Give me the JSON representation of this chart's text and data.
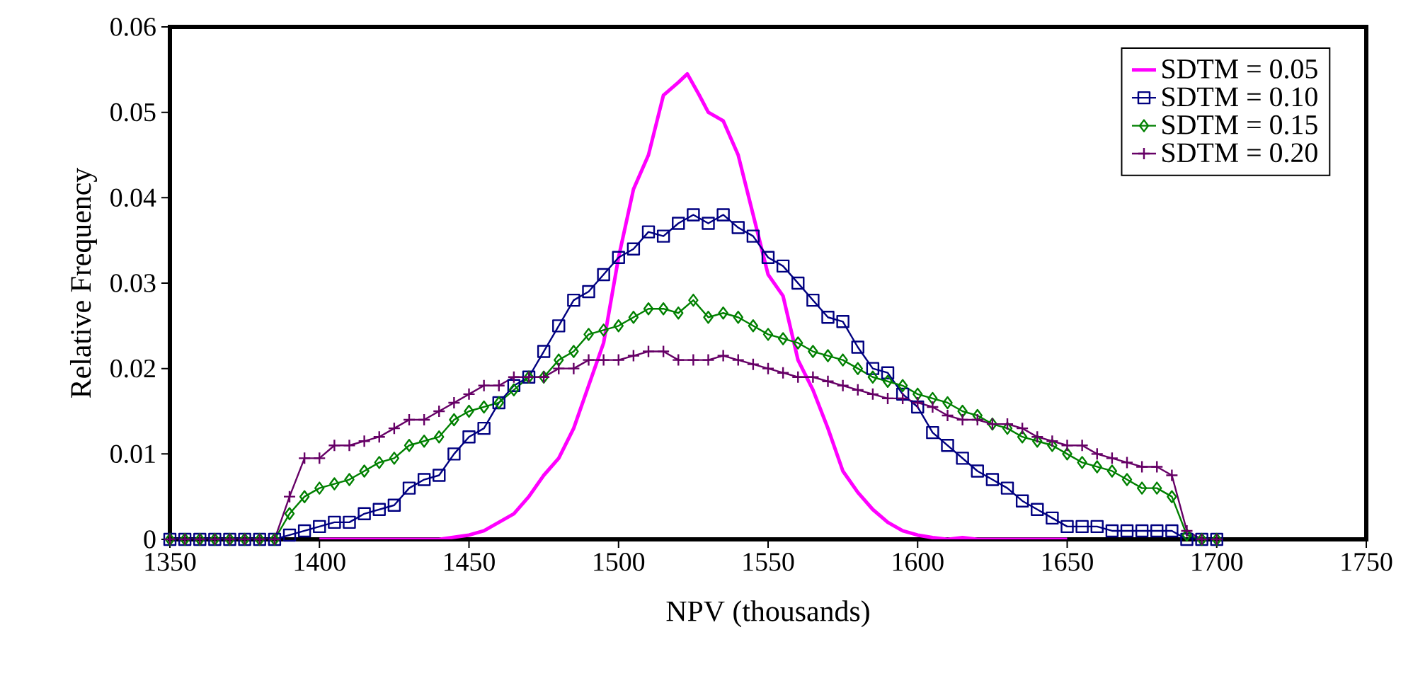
{
  "chart_data": {
    "type": "line",
    "xlabel": "NPV (thousands)",
    "ylabel": "Relative Frequency",
    "xlim": [
      1350,
      1750
    ],
    "xticks": [
      1350,
      1400,
      1450,
      1500,
      1550,
      1600,
      1650,
      1700,
      1750
    ],
    "ylim": [
      0,
      0.06
    ],
    "yticks": [
      0,
      0.01,
      0.02,
      0.03,
      0.04,
      0.05,
      0.06
    ],
    "legend": "top right",
    "grid": false,
    "line_style": "solid",
    "series": [
      {
        "name": "SDTM = 0.05",
        "color": "#ff00ff",
        "marker": "none",
        "x": [
          1400,
          1440,
          1450,
          1455,
          1460,
          1465,
          1470,
          1475,
          1480,
          1485,
          1490,
          1495,
          1500,
          1505,
          1510,
          1515,
          1520,
          1523,
          1527,
          1530,
          1535,
          1540,
          1545,
          1550,
          1555,
          1560,
          1565,
          1570,
          1575,
          1580,
          1585,
          1590,
          1595,
          1600,
          1605,
          1610,
          1615,
          1620,
          1650
        ],
        "values": [
          0,
          0,
          0.0005,
          0.001,
          0.002,
          0.003,
          0.005,
          0.0075,
          0.0095,
          0.013,
          0.018,
          0.023,
          0.033,
          0.041,
          0.045,
          0.052,
          0.0535,
          0.0545,
          0.052,
          0.05,
          0.049,
          0.045,
          0.038,
          0.031,
          0.0285,
          0.021,
          0.0175,
          0.013,
          0.008,
          0.0055,
          0.0035,
          0.002,
          0.001,
          0.0005,
          0.0002,
          0,
          0.0002,
          0,
          0
        ]
      },
      {
        "name": "SDTM = 0.10",
        "color": "#000080",
        "marker": "square",
        "x": [
          1350,
          1355,
          1360,
          1365,
          1370,
          1375,
          1380,
          1385,
          1390,
          1395,
          1400,
          1405,
          1410,
          1415,
          1420,
          1425,
          1430,
          1435,
          1440,
          1445,
          1450,
          1455,
          1460,
          1465,
          1470,
          1475,
          1480,
          1485,
          1490,
          1495,
          1500,
          1505,
          1510,
          1515,
          1520,
          1525,
          1530,
          1535,
          1540,
          1545,
          1550,
          1555,
          1560,
          1565,
          1570,
          1575,
          1580,
          1585,
          1590,
          1595,
          1600,
          1605,
          1610,
          1615,
          1620,
          1625,
          1630,
          1635,
          1640,
          1645,
          1650,
          1655,
          1660,
          1665,
          1670,
          1675,
          1680,
          1685,
          1690,
          1695,
          1700
        ],
        "values": [
          0,
          0,
          0,
          0,
          0,
          0,
          0,
          0,
          0.0005,
          0.001,
          0.0015,
          0.002,
          0.002,
          0.003,
          0.0035,
          0.004,
          0.006,
          0.007,
          0.0075,
          0.01,
          0.012,
          0.013,
          0.016,
          0.018,
          0.019,
          0.022,
          0.025,
          0.028,
          0.029,
          0.031,
          0.033,
          0.034,
          0.036,
          0.0355,
          0.037,
          0.038,
          0.037,
          0.038,
          0.0365,
          0.0355,
          0.033,
          0.032,
          0.03,
          0.028,
          0.026,
          0.0255,
          0.0225,
          0.02,
          0.0195,
          0.017,
          0.0155,
          0.0125,
          0.011,
          0.0095,
          0.008,
          0.007,
          0.006,
          0.0045,
          0.0035,
          0.0025,
          0.0015,
          0.0015,
          0.0015,
          0.001,
          0.001,
          0.001,
          0.001,
          0.001,
          0,
          0,
          0
        ]
      },
      {
        "name": "SDTM = 0.15",
        "color": "#008000",
        "marker": "diamond",
        "x": [
          1350,
          1355,
          1360,
          1365,
          1370,
          1375,
          1380,
          1385,
          1390,
          1395,
          1400,
          1405,
          1410,
          1415,
          1420,
          1425,
          1430,
          1435,
          1440,
          1445,
          1450,
          1455,
          1460,
          1465,
          1470,
          1475,
          1480,
          1485,
          1490,
          1495,
          1500,
          1505,
          1510,
          1515,
          1520,
          1525,
          1530,
          1535,
          1540,
          1545,
          1550,
          1555,
          1560,
          1565,
          1570,
          1575,
          1580,
          1585,
          1590,
          1595,
          1600,
          1605,
          1610,
          1615,
          1620,
          1625,
          1630,
          1635,
          1640,
          1645,
          1650,
          1655,
          1660,
          1665,
          1670,
          1675,
          1680,
          1685,
          1690,
          1695,
          1700
        ],
        "values": [
          0,
          0,
          0,
          0,
          0,
          0,
          0,
          0,
          0.003,
          0.005,
          0.006,
          0.0065,
          0.007,
          0.008,
          0.009,
          0.0095,
          0.011,
          0.0115,
          0.012,
          0.014,
          0.015,
          0.0155,
          0.016,
          0.0175,
          0.019,
          0.019,
          0.021,
          0.022,
          0.024,
          0.0245,
          0.025,
          0.026,
          0.027,
          0.027,
          0.0265,
          0.028,
          0.026,
          0.0265,
          0.026,
          0.025,
          0.024,
          0.0235,
          0.023,
          0.022,
          0.0215,
          0.021,
          0.02,
          0.019,
          0.0185,
          0.018,
          0.017,
          0.0165,
          0.016,
          0.015,
          0.0145,
          0.0135,
          0.013,
          0.012,
          0.0115,
          0.011,
          0.01,
          0.009,
          0.0085,
          0.008,
          0.007,
          0.006,
          0.006,
          0.005,
          0.0005,
          0,
          0
        ]
      },
      {
        "name": "SDTM = 0.20",
        "color": "#660066",
        "marker": "cross",
        "x": [
          1350,
          1355,
          1360,
          1365,
          1370,
          1375,
          1380,
          1385,
          1390,
          1395,
          1400,
          1405,
          1410,
          1415,
          1420,
          1425,
          1430,
          1435,
          1440,
          1445,
          1450,
          1455,
          1460,
          1465,
          1470,
          1475,
          1480,
          1485,
          1490,
          1495,
          1500,
          1505,
          1510,
          1515,
          1520,
          1525,
          1530,
          1535,
          1540,
          1545,
          1550,
          1555,
          1560,
          1565,
          1570,
          1575,
          1580,
          1585,
          1590,
          1595,
          1600,
          1605,
          1610,
          1615,
          1620,
          1625,
          1630,
          1635,
          1640,
          1645,
          1650,
          1655,
          1660,
          1665,
          1670,
          1675,
          1680,
          1685,
          1690,
          1695,
          1700
        ],
        "values": [
          0,
          0,
          0,
          0,
          0,
          0,
          0,
          0,
          0.005,
          0.0095,
          0.0095,
          0.011,
          0.011,
          0.0115,
          0.012,
          0.013,
          0.014,
          0.014,
          0.015,
          0.016,
          0.017,
          0.018,
          0.018,
          0.019,
          0.019,
          0.019,
          0.02,
          0.02,
          0.021,
          0.021,
          0.021,
          0.0215,
          0.022,
          0.022,
          0.021,
          0.021,
          0.021,
          0.0215,
          0.021,
          0.0205,
          0.02,
          0.0195,
          0.019,
          0.019,
          0.0185,
          0.018,
          0.0175,
          0.017,
          0.0165,
          0.0165,
          0.016,
          0.0155,
          0.0145,
          0.014,
          0.014,
          0.0135,
          0.0135,
          0.013,
          0.012,
          0.0115,
          0.011,
          0.011,
          0.01,
          0.0095,
          0.009,
          0.0085,
          0.0085,
          0.0075,
          0.001,
          0,
          0
        ]
      }
    ]
  }
}
